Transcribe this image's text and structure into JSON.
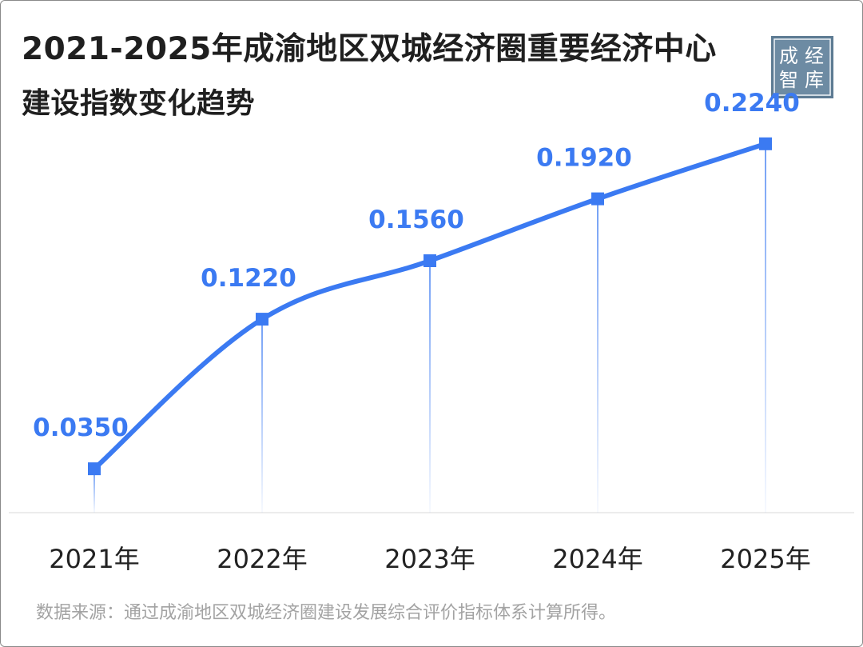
{
  "header": {
    "title_line1": "2021-2025年成渝地区双城经济圈重要经济中心",
    "title_line2": "建设指数变化趋势"
  },
  "logo": {
    "char1": "成",
    "char2": "经",
    "char3": "智",
    "char4": "库"
  },
  "footer": {
    "source": "数据来源：通过成渝地区双城经济圈建设发展综合评价指标体系计算所得。"
  },
  "chart_data": {
    "type": "line",
    "categories": [
      "2021年",
      "2022年",
      "2023年",
      "2024年",
      "2025年"
    ],
    "values": [
      0.035,
      0.122,
      0.156,
      0.192,
      0.224
    ],
    "data_labels": [
      "0.0350",
      "0.1220",
      "0.1560",
      "0.1920",
      "0.2240"
    ],
    "title": "2021-2025年成渝地区双城经济圈重要经济中心建设指数变化趋势",
    "xlabel": "",
    "ylabel": "",
    "grid": false,
    "smooth": true,
    "colors": {
      "line": "#3b7af2",
      "label": "#3b7af2",
      "axis_text": "#222222",
      "dropline": "#3b7af2"
    }
  }
}
